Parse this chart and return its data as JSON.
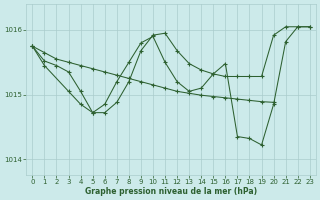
{
  "title": "Graphe pression niveau de la mer (hPa)",
  "background_color": "#cceaea",
  "grid_color": "#aacccc",
  "line_color": "#2d6030",
  "xlim": [
    -0.5,
    23.5
  ],
  "ylim": [
    1013.75,
    1016.4
  ],
  "yticks": [
    1014,
    1015,
    1016
  ],
  "xticks": [
    0,
    1,
    2,
    3,
    4,
    5,
    6,
    7,
    8,
    9,
    10,
    11,
    12,
    13,
    14,
    15,
    16,
    17,
    18,
    19,
    20,
    21,
    22,
    23
  ],
  "series": [
    {
      "x": [
        0,
        1,
        2,
        3,
        4,
        5,
        6,
        7,
        8,
        9,
        10,
        11,
        12,
        13,
        14,
        15,
        16,
        17,
        18,
        19,
        20,
        21,
        22,
        23
      ],
      "y": [
        1015.75,
        1015.55,
        1015.45,
        1015.35,
        1015.1,
        1014.72,
        1014.72,
        1014.85,
        1015.2,
        1015.65,
        1015.9,
        1015.95,
        1015.65,
        1015.45,
        1015.35,
        1015.3,
        1015.25,
        1015.25,
        1015.25,
        1015.25,
        1015.9,
        1016.0,
        1016.05,
        1016.05
      ]
    },
    {
      "x": [
        0,
        1,
        2,
        3,
        4,
        5,
        6,
        7,
        8,
        9,
        10,
        11,
        12,
        13,
        14,
        15,
        16,
        17,
        18,
        19,
        20,
        21,
        22,
        23
      ],
      "y": [
        1015.75,
        1015.45,
        1015.3,
        1015.1,
        1014.85,
        1014.72,
        1014.85,
        1015.2,
        1015.5,
        1015.8,
        1015.92,
        1015.5,
        1015.2,
        1015.05,
        1015.1,
        1015.3,
        1015.45,
        1014.35,
        1014.3,
        1014.22,
        1014.88,
        1015.85,
        1016.0,
        1016.05
      ]
    },
    {
      "x": [
        0,
        1,
        2,
        3,
        4,
        5,
        6,
        7,
        8,
        9,
        10,
        11,
        12,
        13,
        14,
        15,
        16,
        17,
        18,
        19,
        20
      ],
      "y": [
        1015.75,
        1015.65,
        1015.58,
        1015.52,
        1015.47,
        1015.42,
        1015.38,
        1015.33,
        1015.28,
        1015.22,
        1015.17,
        1015.12,
        1015.08,
        1015.04,
        1015.0,
        1014.97,
        1014.94,
        1014.92,
        1014.9,
        1014.88,
        1014.87
      ]
    },
    {
      "x": [
        0,
        1,
        2,
        3,
        4,
        5,
        6,
        7,
        8,
        9,
        10,
        11,
        12,
        13,
        14,
        15,
        16,
        17,
        18,
        19,
        20,
        21,
        22,
        23
      ],
      "y": [
        1015.62,
        1015.48,
        1015.45,
        1015.42,
        1015.38,
        1015.35,
        1015.32,
        1015.3,
        1015.28,
        1015.95,
        1015.5,
        1015.18,
        1015.05,
        1015.05,
        1015.1,
        1015.32,
        1015.48,
        1014.35,
        1014.32,
        1014.22,
        1014.85,
        1015.82,
        1016.0,
        1016.05
      ]
    }
  ]
}
